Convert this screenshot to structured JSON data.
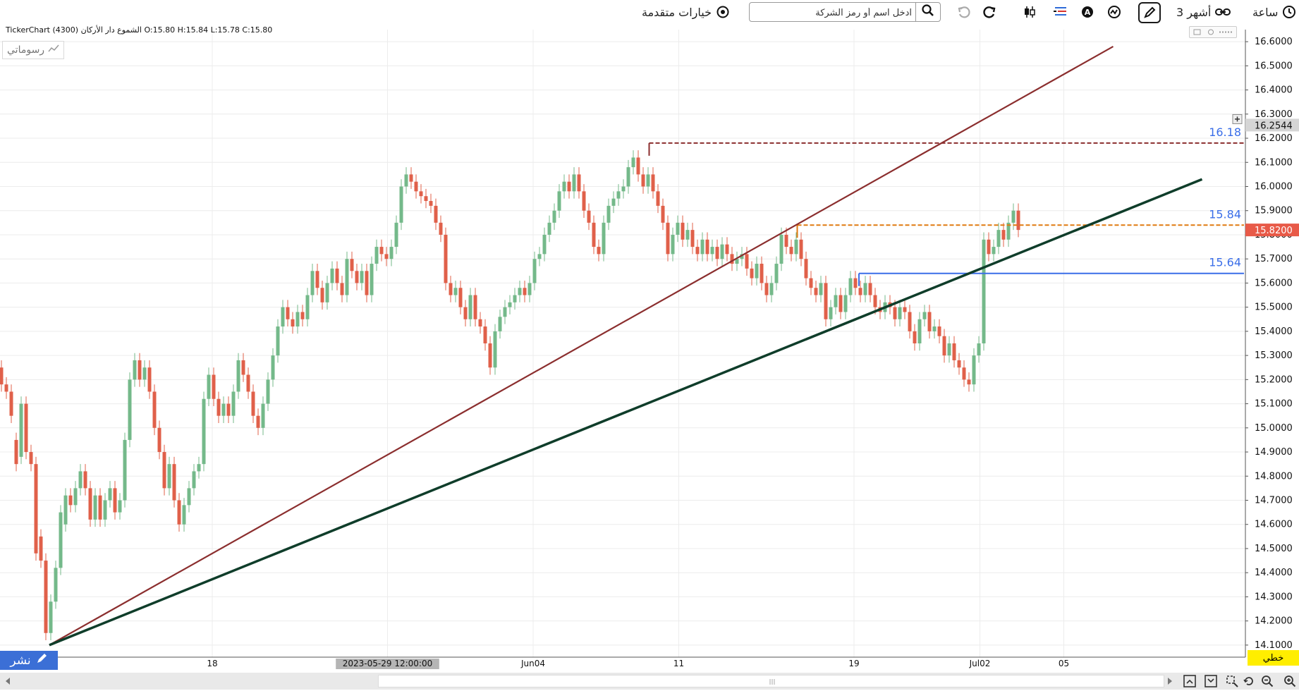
{
  "toolbar": {
    "time_label": "ساعة",
    "period_label": "3 أشهر",
    "search_placeholder": "ادخل اسم أو رمز الشركة",
    "advanced_label": "خيارات متقدمة"
  },
  "info": {
    "ohlc_text": "TickerChart الشموع دار الأركان (4300) O:15.80  H:15.84  L:15.78  C:15.80"
  },
  "drawings_label": "رسوماتي",
  "publish_label": "نشر",
  "mode_label": "خطي",
  "colors": {
    "up": "#74b98a",
    "down": "#e0604a",
    "trend_red": "#8b2e2e",
    "trend_green": "#0f3d2a",
    "level_blue": "#3a6ee8",
    "level_orange": "#e07a10",
    "level_maroon": "#8b2e2e",
    "current_price_bg": "#e85a48"
  },
  "chart_data": {
    "type": "candlestick",
    "y_range": [
      14.05,
      16.65
    ],
    "y_ticks": [
      "14.1000",
      "14.2000",
      "14.3000",
      "14.4000",
      "14.5000",
      "14.6000",
      "14.7000",
      "14.8000",
      "14.9000",
      "15.0000",
      "15.1000",
      "15.2000",
      "15.3000",
      "15.4000",
      "15.5000",
      "15.6000",
      "15.7000",
      "15.8000",
      "15.9000",
      "16.0000",
      "16.1000",
      "16.2000",
      "16.3000",
      "16.4000",
      "16.5000",
      "16.6000"
    ],
    "x_labels": [
      {
        "label": "18",
        "bar": 86
      },
      {
        "label": "2023-05-29 12:00:00",
        "bar": 157,
        "highlight": true
      },
      {
        "label": "Jun04",
        "bar": 216
      },
      {
        "label": "11",
        "bar": 275
      },
      {
        "label": "19",
        "bar": 346
      },
      {
        "label": "Jul02",
        "bar": 397
      },
      {
        "label": "05",
        "bar": 431
      }
    ],
    "bar_count": 522,
    "candles": [
      [
        0,
        15.25,
        15.18
      ],
      [
        2,
        15.18,
        15.15
      ],
      [
        4,
        15.15,
        15.05
      ],
      [
        6,
        14.95,
        14.85
      ],
      [
        8,
        14.88,
        15.1
      ],
      [
        10,
        15.1,
        14.9
      ],
      [
        12,
        14.9,
        14.85
      ],
      [
        14,
        14.85,
        14.48
      ],
      [
        16,
        14.55,
        14.45
      ],
      [
        18,
        14.45,
        14.15
      ],
      [
        20,
        14.15,
        14.28
      ],
      [
        22,
        14.28,
        14.42
      ],
      [
        24,
        14.42,
        14.65
      ],
      [
        26,
        14.6,
        14.72
      ],
      [
        28,
        14.72,
        14.68
      ],
      [
        30,
        14.68,
        14.75
      ],
      [
        32,
        14.75,
        14.82
      ],
      [
        34,
        14.82,
        14.75
      ],
      [
        36,
        14.75,
        14.62
      ],
      [
        38,
        14.62,
        14.72
      ],
      [
        40,
        14.72,
        14.62
      ],
      [
        42,
        14.62,
        14.7
      ],
      [
        44,
        14.7,
        14.75
      ],
      [
        46,
        14.75,
        14.65
      ],
      [
        48,
        14.65,
        14.7
      ],
      [
        50,
        14.7,
        14.95
      ],
      [
        52,
        14.95,
        15.2
      ],
      [
        54,
        15.2,
        15.28
      ],
      [
        56,
        15.28,
        15.2
      ],
      [
        58,
        15.2,
        15.25
      ],
      [
        60,
        15.25,
        15.15
      ],
      [
        62,
        15.15,
        15.0
      ],
      [
        64,
        15.0,
        14.9
      ],
      [
        66,
        14.9,
        14.75
      ],
      [
        68,
        14.75,
        14.85
      ],
      [
        70,
        14.85,
        14.7
      ],
      [
        72,
        14.7,
        14.6
      ],
      [
        74,
        14.6,
        14.68
      ],
      [
        76,
        14.68,
        14.75
      ],
      [
        78,
        14.75,
        14.82
      ],
      [
        80,
        14.82,
        14.85
      ],
      [
        82,
        14.85,
        15.12
      ],
      [
        84,
        15.12,
        15.22
      ],
      [
        86,
        15.22,
        15.12
      ],
      [
        88,
        15.12,
        15.05
      ],
      [
        90,
        15.05,
        15.1
      ],
      [
        92,
        15.1,
        15.05
      ],
      [
        94,
        15.05,
        15.15
      ],
      [
        96,
        15.15,
        15.28
      ],
      [
        98,
        15.28,
        15.22
      ],
      [
        100,
        15.22,
        15.15
      ],
      [
        102,
        15.15,
        15.05
      ],
      [
        104,
        15.05,
        15.0
      ],
      [
        106,
        15.0,
        15.1
      ],
      [
        108,
        15.1,
        15.2
      ],
      [
        110,
        15.2,
        15.3
      ],
      [
        112,
        15.3,
        15.42
      ],
      [
        114,
        15.42,
        15.5
      ],
      [
        116,
        15.5,
        15.45
      ],
      [
        118,
        15.45,
        15.42
      ],
      [
        120,
        15.42,
        15.48
      ],
      [
        122,
        15.48,
        15.45
      ],
      [
        124,
        15.45,
        15.55
      ],
      [
        126,
        15.55,
        15.65
      ],
      [
        128,
        15.65,
        15.58
      ],
      [
        130,
        15.58,
        15.52
      ],
      [
        132,
        15.52,
        15.6
      ],
      [
        134,
        15.6,
        15.66
      ],
      [
        136,
        15.66,
        15.6
      ],
      [
        138,
        15.6,
        15.55
      ],
      [
        140,
        15.55,
        15.7
      ],
      [
        142,
        15.7,
        15.65
      ],
      [
        144,
        15.65,
        15.6
      ],
      [
        146,
        15.6,
        15.65
      ],
      [
        148,
        15.65,
        15.55
      ],
      [
        150,
        15.55,
        15.68
      ],
      [
        152,
        15.68,
        15.75
      ],
      [
        154,
        15.75,
        15.72
      ],
      [
        156,
        15.72,
        15.7
      ],
      [
        158,
        15.7,
        15.75
      ],
      [
        160,
        15.75,
        15.85
      ],
      [
        162,
        15.85,
        16.0
      ],
      [
        164,
        16.0,
        16.05
      ],
      [
        166,
        16.05,
        16.02
      ],
      [
        168,
        16.02,
        15.98
      ],
      [
        170,
        15.98,
        15.96
      ],
      [
        172,
        15.96,
        15.94
      ],
      [
        174,
        15.94,
        15.92
      ],
      [
        176,
        15.92,
        15.85
      ],
      [
        178,
        15.85,
        15.8
      ],
      [
        180,
        15.8,
        15.6
      ],
      [
        182,
        15.6,
        15.55
      ],
      [
        184,
        15.55,
        15.58
      ],
      [
        186,
        15.58,
        15.5
      ],
      [
        188,
        15.5,
        15.45
      ],
      [
        190,
        15.45,
        15.55
      ],
      [
        192,
        15.55,
        15.45
      ],
      [
        194,
        15.45,
        15.42
      ],
      [
        196,
        15.42,
        15.35
      ],
      [
        198,
        15.35,
        15.25
      ],
      [
        200,
        15.25,
        15.4
      ],
      [
        202,
        15.4,
        15.46
      ],
      [
        204,
        15.46,
        15.5
      ],
      [
        206,
        15.5,
        15.52
      ],
      [
        208,
        15.52,
        15.55
      ],
      [
        210,
        15.55,
        15.58
      ],
      [
        212,
        15.58,
        15.55
      ],
      [
        214,
        15.55,
        15.6
      ],
      [
        216,
        15.6,
        15.7
      ],
      [
        218,
        15.7,
        15.72
      ],
      [
        220,
        15.72,
        15.8
      ],
      [
        222,
        15.8,
        15.85
      ],
      [
        224,
        15.85,
        15.9
      ],
      [
        226,
        15.9,
        15.98
      ],
      [
        228,
        15.98,
        16.02
      ],
      [
        230,
        16.02,
        15.98
      ],
      [
        232,
        15.98,
        16.05
      ],
      [
        234,
        16.05,
        15.98
      ],
      [
        236,
        15.98,
        15.9
      ],
      [
        238,
        15.9,
        15.85
      ],
      [
        240,
        15.85,
        15.75
      ],
      [
        242,
        15.75,
        15.72
      ],
      [
        244,
        15.72,
        15.85
      ],
      [
        246,
        15.85,
        15.92
      ],
      [
        248,
        15.92,
        15.95
      ],
      [
        250,
        15.95,
        15.98
      ],
      [
        252,
        15.98,
        16.0
      ],
      [
        254,
        16.0,
        16.08
      ],
      [
        256,
        16.08,
        16.12
      ],
      [
        258,
        16.12,
        16.05
      ],
      [
        260,
        16.05,
        16.0
      ],
      [
        262,
        16.0,
        16.05
      ],
      [
        264,
        16.05,
        15.98
      ],
      [
        266,
        15.98,
        15.92
      ],
      [
        268,
        15.92,
        15.85
      ],
      [
        270,
        15.85,
        15.72
      ],
      [
        272,
        15.72,
        15.8
      ],
      [
        274,
        15.8,
        15.85
      ],
      [
        276,
        15.85,
        15.78
      ],
      [
        278,
        15.78,
        15.82
      ],
      [
        280,
        15.82,
        15.75
      ],
      [
        282,
        15.75,
        15.72
      ],
      [
        284,
        15.72,
        15.78
      ],
      [
        286,
        15.78,
        15.72
      ],
      [
        288,
        15.72,
        15.75
      ],
      [
        290,
        15.75,
        15.7
      ],
      [
        292,
        15.7,
        15.76
      ],
      [
        294,
        15.76,
        15.72
      ],
      [
        296,
        15.72,
        15.68
      ],
      [
        298,
        15.68,
        15.7
      ],
      [
        300,
        15.7,
        15.72
      ],
      [
        302,
        15.72,
        15.66
      ],
      [
        304,
        15.66,
        15.62
      ],
      [
        306,
        15.62,
        15.68
      ],
      [
        308,
        15.68,
        15.6
      ],
      [
        310,
        15.6,
        15.55
      ],
      [
        312,
        15.55,
        15.6
      ],
      [
        314,
        15.6,
        15.68
      ],
      [
        316,
        15.68,
        15.8
      ],
      [
        318,
        15.8,
        15.75
      ],
      [
        320,
        15.75,
        15.72
      ],
      [
        322,
        15.72,
        15.78
      ],
      [
        324,
        15.78,
        15.7
      ],
      [
        326,
        15.7,
        15.62
      ],
      [
        328,
        15.62,
        15.58
      ],
      [
        330,
        15.58,
        15.55
      ],
      [
        332,
        15.55,
        15.6
      ],
      [
        334,
        15.6,
        15.45
      ],
      [
        336,
        15.45,
        15.5
      ],
      [
        338,
        15.5,
        15.55
      ],
      [
        340,
        15.55,
        15.48
      ],
      [
        342,
        15.48,
        15.55
      ],
      [
        344,
        15.55,
        15.62
      ],
      [
        346,
        15.62,
        15.58
      ],
      [
        348,
        15.58,
        15.55
      ],
      [
        350,
        15.55,
        15.6
      ],
      [
        352,
        15.6,
        15.55
      ],
      [
        354,
        15.55,
        15.5
      ],
      [
        356,
        15.5,
        15.48
      ],
      [
        358,
        15.48,
        15.52
      ],
      [
        360,
        15.52,
        15.5
      ],
      [
        362,
        15.5,
        15.45
      ],
      [
        364,
        15.45,
        15.5
      ],
      [
        366,
        15.5,
        15.48
      ],
      [
        368,
        15.48,
        15.4
      ],
      [
        370,
        15.4,
        15.35
      ],
      [
        372,
        15.35,
        15.45
      ],
      [
        374,
        15.45,
        15.48
      ],
      [
        376,
        15.48,
        15.4
      ],
      [
        378,
        15.4,
        15.42
      ],
      [
        380,
        15.42,
        15.38
      ],
      [
        382,
        15.38,
        15.3
      ],
      [
        384,
        15.3,
        15.35
      ],
      [
        386,
        15.35,
        15.28
      ],
      [
        388,
        15.28,
        15.25
      ],
      [
        390,
        15.25,
        15.2
      ],
      [
        392,
        15.2,
        15.18
      ],
      [
        394,
        15.18,
        15.3
      ],
      [
        396,
        15.3,
        15.35
      ],
      [
        398,
        15.35,
        15.78
      ],
      [
        400,
        15.78,
        15.72
      ],
      [
        402,
        15.72,
        15.75
      ],
      [
        404,
        15.75,
        15.82
      ],
      [
        406,
        15.82,
        15.78
      ],
      [
        408,
        15.78,
        15.85
      ],
      [
        410,
        15.85,
        15.9
      ],
      [
        412,
        15.9,
        15.82
      ]
    ],
    "trendlines": [
      {
        "color": "trend_red",
        "bar1": 20,
        "p1": 14.1,
        "bar2": 451,
        "p2": 16.58
      },
      {
        "color": "trend_green",
        "bar1": 20,
        "p1": 14.1,
        "bar2": 487,
        "p2": 16.03
      }
    ],
    "levels": [
      {
        "value": 16.18,
        "label": "16.18",
        "color": "level_maroon",
        "dashed": true,
        "start_bar": 263
      },
      {
        "value": 15.84,
        "label": "15.84",
        "color": "level_orange",
        "dashed": true,
        "start_bar": 323
      },
      {
        "value": 15.64,
        "label": "15.64",
        "color": "level_blue",
        "dashed": false,
        "start_bar": 348
      }
    ],
    "price_markers": [
      {
        "value": 16.2544,
        "label": "16.2544",
        "style": "gray"
      },
      {
        "value": 15.82,
        "label": "15.8200",
        "style": "current"
      }
    ]
  }
}
